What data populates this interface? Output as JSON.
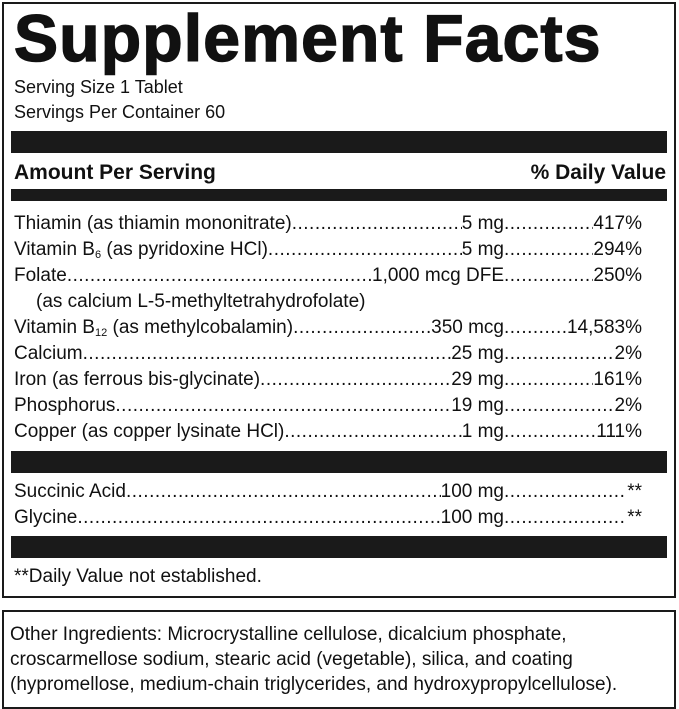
{
  "title": "Supplement Facts",
  "serving_size": "Serving Size 1 Tablet",
  "servings_per_container": "Servings Per Container 60",
  "header": {
    "amount": "Amount Per Serving",
    "dv": "% Daily Value"
  },
  "nutrients": [
    {
      "name": "Thiamin (as thiamin mononitrate)",
      "amount": "5 mg",
      "dv": "417%"
    },
    {
      "name": "Vitamin B",
      "sub": "6",
      "name_rest": " (as pyridoxine HCl)",
      "amount": "5 mg",
      "dv": "294%"
    },
    {
      "name": "Folate",
      "amount": "1,000 mcg DFE",
      "dv": "250%",
      "note": "(as calcium L-5-methyltetrahydrofolate)"
    },
    {
      "name": "Vitamin B",
      "sub": "12",
      "name_rest": " (as methylcobalamin)",
      "amount": "350 mcg",
      "dv": "14,583%"
    },
    {
      "name": "Calcium",
      "amount": "25 mg",
      "dv": "2%"
    },
    {
      "name": "Iron (as ferrous bis-glycinate)",
      "amount": "29 mg",
      "dv": "161%"
    },
    {
      "name": "Phosphorus",
      "amount": "19 mg",
      "dv": "2%"
    },
    {
      "name": "Copper (as copper lysinate HCl)",
      "amount": "1 mg",
      "dv": "111%"
    }
  ],
  "other_nutrients": [
    {
      "name": "Succinic Acid",
      "amount": "100 mg",
      "dv": "**"
    },
    {
      "name": "Glycine",
      "amount": "100 mg",
      "dv": "**"
    }
  ],
  "footnote": "**Daily Value not established.",
  "other_ingredients": "Other Ingredients: Microcrystalline cellulose, dicalcium phosphate, croscarmellose sodium, stearic acid (vegetable), silica, and coating (hypromellose, medium-chain triglycerides, and hydroxypropylcellulose)."
}
